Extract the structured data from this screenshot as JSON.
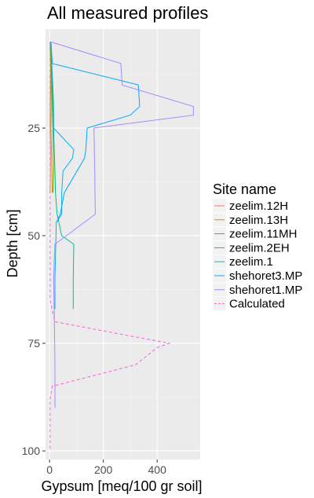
{
  "chart_data": {
    "type": "line",
    "title": "All measured profiles",
    "xlabel": "Gypsum [meq/100 gr soil]",
    "ylabel": "Depth [cm]",
    "xlim": [
      -15,
      560
    ],
    "ylim": [
      102,
      2
    ],
    "x_ticks": [
      0,
      200,
      400
    ],
    "y_ticks": [
      25,
      50,
      75,
      100
    ],
    "grid": true,
    "legend_title": "Site name",
    "legend_position": "right",
    "series": [
      {
        "name": "zeelim.12H",
        "color": "#F8766D",
        "dash": false,
        "points": [
          [
            2,
            5
          ],
          [
            3,
            10
          ],
          [
            3,
            15
          ],
          [
            2,
            20
          ],
          [
            2,
            25
          ],
          [
            3,
            30
          ],
          [
            3,
            35
          ],
          [
            2,
            40
          ]
        ]
      },
      {
        "name": "zeelim.13H",
        "color": "#C49A00",
        "dash": false,
        "points": [
          [
            2,
            5
          ],
          [
            4,
            10
          ],
          [
            5,
            15
          ],
          [
            6,
            20
          ],
          [
            5,
            25
          ],
          [
            7,
            30
          ],
          [
            9,
            35
          ],
          [
            10,
            40
          ]
        ]
      },
      {
        "name": "zeelim.11MH",
        "color": "#53B400",
        "dash": false,
        "points": [
          [
            3,
            5
          ],
          [
            6,
            10
          ],
          [
            8,
            15
          ],
          [
            10,
            20
          ],
          [
            12,
            25
          ],
          [
            14,
            30
          ],
          [
            15,
            35
          ],
          [
            13,
            40
          ]
        ]
      },
      {
        "name": "zeelim.2EH",
        "color": "#00C094",
        "dash": false,
        "points": [
          [
            5,
            5
          ],
          [
            8,
            10
          ],
          [
            10,
            15
          ],
          [
            12,
            20
          ],
          [
            15,
            25
          ],
          [
            20,
            35
          ],
          [
            22,
            40
          ],
          [
            28,
            45
          ],
          [
            45,
            50
          ],
          [
            90,
            52
          ],
          [
            88,
            60
          ],
          [
            88,
            67
          ]
        ]
      },
      {
        "name": "zeelim.1",
        "color": "#00B6EB",
        "dash": false,
        "points": [
          [
            5,
            5
          ],
          [
            8,
            10
          ],
          [
            12,
            15
          ],
          [
            15,
            20
          ],
          [
            15,
            25
          ],
          [
            90,
            30
          ],
          [
            85,
            32
          ],
          [
            50,
            35
          ],
          [
            45,
            40
          ],
          [
            45,
            45
          ],
          [
            25,
            47
          ],
          [
            20,
            60
          ],
          [
            20,
            67
          ]
        ]
      },
      {
        "name": "shehoret3.MP",
        "color": "#06A4FF",
        "dash": false,
        "points": [
          [
            5,
            5
          ],
          [
            10,
            10
          ],
          [
            330,
            15
          ],
          [
            335,
            20
          ],
          [
            300,
            22
          ],
          [
            140,
            25
          ],
          [
            135,
            30
          ],
          [
            130,
            32
          ],
          [
            55,
            40
          ],
          [
            40,
            45
          ],
          [
            25,
            47
          ]
        ]
      },
      {
        "name": "shehoret1.MP",
        "color": "#A58AFF",
        "dash": false,
        "points": [
          [
            5,
            5
          ],
          [
            265,
            10
          ],
          [
            270,
            15
          ],
          [
            535,
            20
          ],
          [
            535,
            22
          ],
          [
            165,
            25
          ],
          [
            168,
            35
          ],
          [
            170,
            45
          ],
          [
            20,
            52
          ],
          [
            15,
            60
          ],
          [
            18,
            70
          ],
          [
            20,
            80
          ],
          [
            20,
            90
          ]
        ]
      },
      {
        "name": "Calculated",
        "color": "#FB61D7",
        "dash": true,
        "points": [
          [
            2,
            5
          ],
          [
            2,
            15
          ],
          [
            2,
            30
          ],
          [
            2,
            45
          ],
          [
            2,
            60
          ],
          [
            2,
            65
          ],
          [
            20,
            70
          ],
          [
            445,
            75
          ],
          [
            400,
            76
          ],
          [
            320,
            80
          ],
          [
            10,
            85
          ],
          [
            2,
            88
          ],
          [
            2,
            100
          ]
        ]
      }
    ]
  }
}
